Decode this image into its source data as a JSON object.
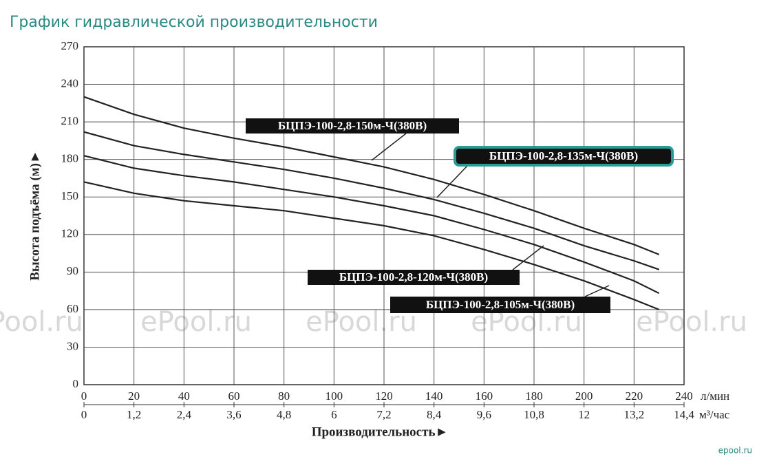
{
  "page_title": "График гидравлической производительности",
  "watermark": "ePool.ru",
  "logo": "epool.ru",
  "chart_data": {
    "type": "line",
    "x_label": "Производительность►",
    "y_label": "Высота подъёма (м)►",
    "x_unit": "л/мин",
    "x2_unit": "м³/час",
    "x": [
      0,
      20,
      40,
      60,
      80,
      100,
      120,
      140,
      160,
      180,
      200,
      220,
      230
    ],
    "xlim": [
      0,
      240
    ],
    "xticks": [
      0,
      20,
      40,
      60,
      80,
      100,
      120,
      140,
      160,
      180,
      200,
      220,
      240
    ],
    "x2lim": [
      0,
      14.4
    ],
    "x2ticks": [
      0,
      {
        "value": 1.2,
        "label": "1,2"
      },
      {
        "value": 2.4,
        "label": "2,4"
      },
      {
        "value": 3.6,
        "label": "3,6"
      },
      {
        "value": 4.8,
        "label": "4,8"
      },
      6,
      {
        "value": 7.2,
        "label": "7,2"
      },
      {
        "value": 8.4,
        "label": "8,4"
      },
      {
        "value": 9.6,
        "label": "9,6"
      },
      {
        "value": 10.8,
        "label": "10,8"
      },
      12,
      {
        "value": 13.2,
        "label": "13,2"
      },
      {
        "value": 14.4,
        "label": "14,4"
      }
    ],
    "ylim": [
      0,
      270
    ],
    "yticks": [
      0,
      30,
      60,
      90,
      120,
      150,
      180,
      210,
      240,
      270
    ],
    "grid": true,
    "series": [
      {
        "name": "БЦПЭ-100-2,8-150м-Ч(380В)",
        "color": "#222222",
        "values": [
          230,
          216,
          205,
          197,
          190,
          182,
          174,
          164,
          152,
          139,
          125,
          112,
          104
        ]
      },
      {
        "name": "БЦПЭ-100-2,8-135м-Ч(380В)",
        "color": "#222222",
        "values": [
          202,
          191,
          184,
          178,
          172,
          165,
          157,
          148,
          137,
          125,
          111,
          99,
          92
        ]
      },
      {
        "name": "БЦПЭ-100-2,8-120м-Ч(380В)",
        "color": "#222222",
        "values": [
          183,
          173,
          167,
          162,
          156,
          150,
          143,
          135,
          124,
          112,
          98,
          83,
          73
        ]
      },
      {
        "name": "БЦПЭ-100-2,8-105м-Ч(380В)",
        "color": "#222222",
        "values": [
          162,
          153,
          147,
          143,
          139,
          133,
          127,
          119,
          108,
          96,
          83,
          68,
          60
        ]
      }
    ]
  }
}
